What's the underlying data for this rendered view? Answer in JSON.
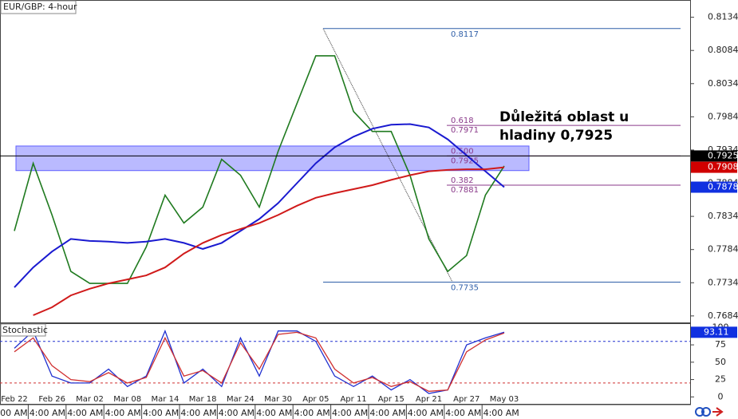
{
  "chart_data": {
    "type": "line",
    "title": "EUR/GBP: 4-hour",
    "categories": [
      "Feb 22",
      null,
      "Feb 26",
      null,
      "Mar 02",
      null,
      "Mar 08",
      null,
      "Mar 14",
      null,
      "Mar 18",
      null,
      "Mar 24",
      null,
      "Mar 30",
      null,
      "Apr 05",
      null,
      "Apr 11",
      null,
      "Apr 15",
      null,
      "Apr 21",
      null,
      "Apr 27",
      null,
      "May 03"
    ],
    "series": [
      {
        "color": "#1f7a1f",
        "values": [
          0.7812,
          0.7914,
          0.7836,
          0.7751,
          0.7733,
          0.7733,
          0.7733,
          0.7788,
          0.7866,
          0.7824,
          0.7848,
          0.792,
          0.7896,
          0.7848,
          0.7932,
          0.8004,
          0.8076,
          0.8076,
          0.7992,
          0.7962,
          0.7962,
          0.7896,
          0.78,
          0.7751,
          0.7775,
          0.7866,
          0.791
        ]
      },
      {
        "color": "#1a1ad0",
        "values": [
          0.7727,
          0.7757,
          0.7781,
          0.78,
          0.7797,
          0.7796,
          0.7794,
          0.7796,
          0.78,
          0.7794,
          0.7785,
          0.7794,
          0.7812,
          0.783,
          0.7854,
          0.7884,
          0.7914,
          0.7938,
          0.7954,
          0.7966,
          0.7972,
          0.7973,
          0.7968,
          0.795,
          0.7926,
          0.7902,
          0.7878
        ]
      },
      {
        "color": "#d01a1a",
        "values": [
          null,
          0.7685,
          0.7697,
          0.7715,
          0.7725,
          0.7733,
          0.7739,
          0.7745,
          0.7757,
          0.7778,
          0.7794,
          0.7806,
          0.7815,
          0.7824,
          0.7836,
          0.785,
          0.7862,
          0.7869,
          0.7875,
          0.7881,
          0.7889,
          0.7896,
          0.7902,
          0.7904,
          0.7905,
          0.7905,
          0.7908
        ]
      }
    ],
    "ylim": [
      0.7673,
      0.816
    ],
    "yticks": [
      0.7684,
      0.7734,
      0.7784,
      0.7834,
      0.7884,
      0.7934,
      0.7984,
      0.8034,
      0.8084,
      0.8134
    ],
    "zone": {
      "range": [
        0.7903,
        0.794
      ],
      "color": "#8c8cff"
    },
    "annotation": [
      "Důležitá oblast u",
      "hladiny 0,7925"
    ],
    "fib": {
      "high": 0.8117,
      "low": 0.7735,
      "color": "#2f5fa8",
      "level_color": "#8a3a8a",
      "levels": [
        {
          "ratio": "0.618",
          "value": 0.7971
        },
        {
          "ratio": "0.500",
          "value": 0.7925
        },
        {
          "ratio": "0.382",
          "value": 0.7881
        }
      ]
    },
    "price_labels": [
      {
        "value": 0.7925,
        "color": "#000000"
      },
      {
        "value": 0.7908,
        "color": "#d00000"
      },
      {
        "value": 0.7878,
        "color": "#1030e0"
      }
    ],
    "time_labels": [
      "4:00 AM",
      "4:00 AM",
      "4:00 AM",
      "4:00 AM",
      "4:00 AM",
      "4:00 AM",
      "4:00 AM",
      "4:00 AM",
      "4:00 AM",
      "4:00 AM",
      "4:00 AM",
      "4:00 AM",
      "4:00 AM",
      "4:00 AM"
    ],
    "stochastic": {
      "title": "Stochastic",
      "series": [
        {
          "color": "#2030d0",
          "values": [
            70,
            95,
            30,
            20,
            20,
            40,
            15,
            30,
            95,
            20,
            40,
            15,
            85,
            30,
            95,
            95,
            80,
            30,
            15,
            30,
            10,
            25,
            5,
            10,
            75,
            85,
            93.11
          ]
        },
        {
          "color": "#d03030",
          "values": [
            65,
            85,
            45,
            25,
            22,
            35,
            20,
            28,
            85,
            30,
            38,
            20,
            78,
            40,
            90,
            93,
            85,
            40,
            20,
            28,
            15,
            22,
            8,
            10,
            65,
            82,
            92
          ]
        }
      ],
      "ylim": [
        -10,
        105
      ],
      "yticks": [
        0,
        25,
        50,
        75,
        100
      ],
      "levels": [
        {
          "value": 80,
          "color": "#2030d0"
        },
        {
          "value": 20,
          "color": "#d03030"
        }
      ],
      "last": 93.11
    }
  }
}
